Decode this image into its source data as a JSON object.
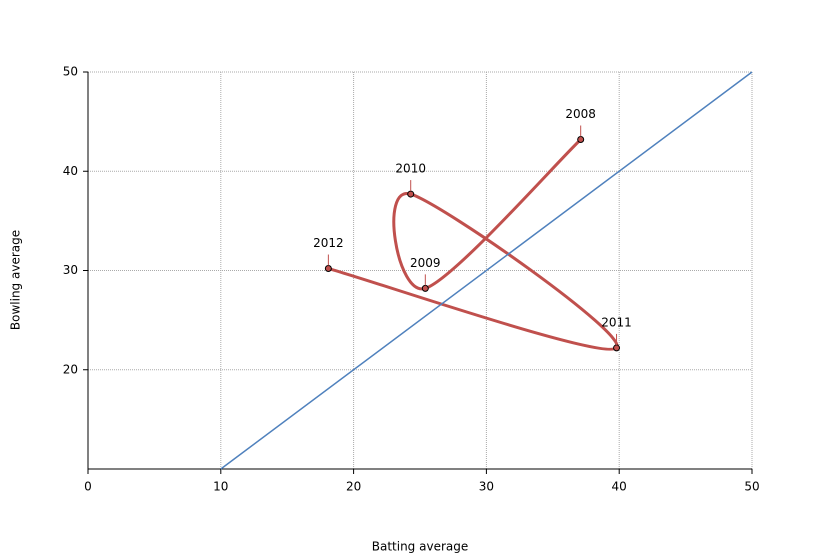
{
  "chart_data": {
    "type": "line",
    "x_label": "Batting average",
    "y_label": "Bowling average",
    "xlim": [
      0,
      50
    ],
    "xticks": [
      0,
      10,
      20,
      30,
      40,
      50
    ],
    "ylim": [
      10,
      50
    ],
    "yticks": [
      20,
      30,
      40,
      50
    ],
    "grid": true,
    "smooth": true,
    "series": [
      {
        "color": "#c0504d",
        "x": [
          37.1,
          25.4,
          24.3,
          39.8,
          18.1
        ],
        "values": [
          43.2,
          28.2,
          37.7,
          22.2,
          30.2
        ],
        "point_labels": [
          "2008",
          "2009",
          "2010",
          "2011",
          "2012"
        ]
      },
      {
        "color": "#4f81bd",
        "x": [
          10,
          50
        ],
        "values": [
          10,
          50
        ]
      }
    ]
  }
}
